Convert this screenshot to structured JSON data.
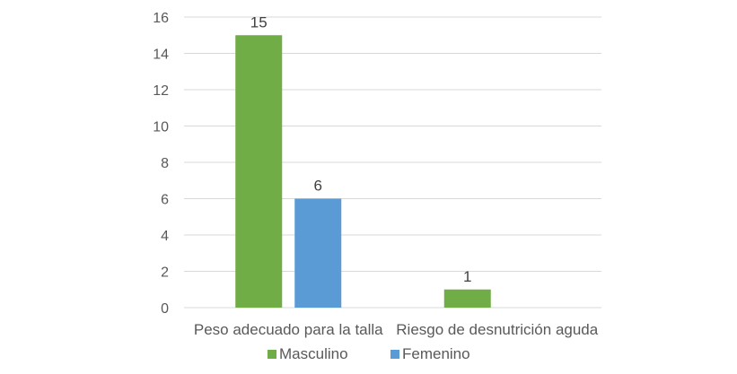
{
  "chart_data": {
    "type": "bar",
    "categories": [
      "Peso adecuado para la talla",
      "Riesgo de desnutrición aguda"
    ],
    "series": [
      {
        "name": "Masculino",
        "values": [
          15,
          1
        ],
        "color": "#70ad47"
      },
      {
        "name": "Femenino",
        "values": [
          6,
          null
        ],
        "color": "#5b9bd5"
      }
    ],
    "data_labels": [
      [
        "15",
        "1"
      ],
      [
        "6",
        ""
      ]
    ],
    "ylim": [
      0,
      16
    ],
    "yticks": [
      0,
      2,
      4,
      6,
      8,
      10,
      12,
      14,
      16
    ],
    "grid": true,
    "legend": "bottom",
    "title": "",
    "xlabel": "",
    "ylabel": ""
  },
  "colors": {
    "gridline": "#d9d9d9",
    "axis": "#d9d9d9",
    "text": "#595959"
  }
}
